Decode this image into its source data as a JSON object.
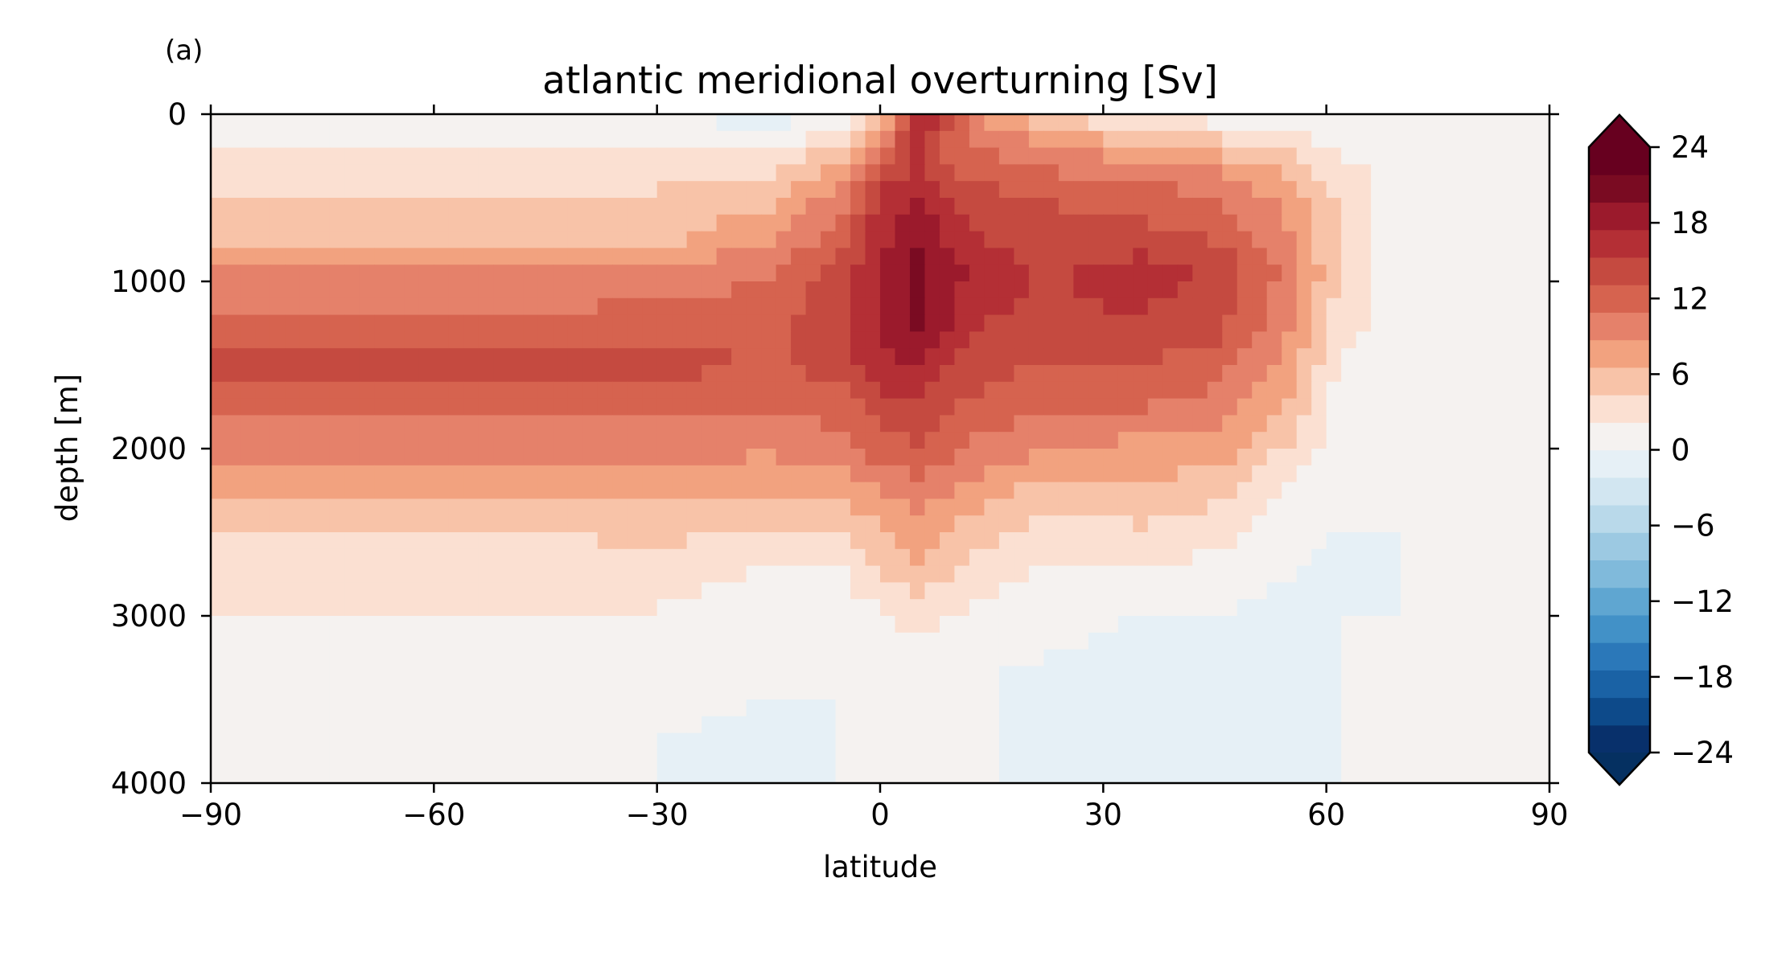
{
  "panel_label": "(a)",
  "chart_data": {
    "type": "heatmap",
    "title": "atlantic meridional overturning [Sv]",
    "xlabel": "latitude",
    "ylabel": "depth [m]",
    "xlim": [
      -90,
      90
    ],
    "ylim": [
      4000,
      0
    ],
    "y_inverted": true,
    "xticks": [
      -90,
      -60,
      -30,
      0,
      30,
      60,
      90
    ],
    "yticks": [
      0,
      1000,
      2000,
      3000,
      4000
    ],
    "colorbar": {
      "min": -24,
      "max": 24,
      "step": 3,
      "extend": "both",
      "ticks": [
        24,
        18,
        12,
        6,
        0,
        -6,
        -12,
        -18,
        -24
      ],
      "colormap": "RdBu_r",
      "colors": [
        "#08306b",
        "#0d4a8a",
        "#1a62a5",
        "#2b78b9",
        "#4291c7",
        "#5fa6d1",
        "#80badb",
        "#9cc9e2",
        "#b9d9ea",
        "#d2e6f1",
        "#e6f0f6",
        "#f5f2f0",
        "#fbe0d2",
        "#f8c3a8",
        "#f2a27f",
        "#e5816a",
        "#d6634f",
        "#c54a40",
        "#b42f35",
        "#9b1a2c",
        "#7a0b22",
        "#67001f"
      ],
      "under_color": "#053061",
      "over_color": "#67001f"
    },
    "depths": [
      0,
      100,
      200,
      350,
      500,
      750,
      900,
      1000,
      1250,
      1500,
      1750,
      2000,
      2250,
      2500,
      2750,
      3000,
      3250,
      3500,
      3750,
      4000
    ],
    "profiles": [
      {
        "lat": -90,
        "values": [
          1,
          1,
          2,
          3,
          5,
          6,
          9,
          9,
          11,
          14,
          11,
          10,
          7,
          4,
          3,
          2,
          1,
          1,
          0,
          0
        ]
      },
      {
        "lat": -60,
        "values": [
          1,
          1,
          2,
          3,
          5,
          6,
          9,
          9,
          11,
          14,
          11,
          10,
          7,
          4,
          3,
          2,
          1,
          1,
          0,
          0
        ]
      },
      {
        "lat": -30,
        "values": [
          0,
          1,
          2,
          3,
          5,
          6,
          9,
          10,
          12,
          14,
          11,
          10,
          7,
          5,
          3,
          2,
          1,
          1,
          0,
          0
        ]
      },
      {
        "lat": -15,
        "values": [
          -1,
          0,
          2,
          4,
          6,
          8,
          10,
          11,
          12,
          13,
          11,
          9,
          7,
          4,
          2,
          1,
          0,
          0,
          -1,
          -1
        ]
      },
      {
        "lat": -5,
        "values": [
          0,
          2,
          5,
          8,
          10,
          12,
          14,
          15,
          15,
          14,
          12,
          10,
          7,
          4,
          2,
          1,
          1,
          0,
          0,
          0
        ]
      },
      {
        "lat": 0,
        "values": [
          4,
          8,
          11,
          14,
          16,
          17,
          18,
          18,
          18,
          17,
          14,
          12,
          9,
          6,
          4,
          2,
          1,
          1,
          0,
          0
        ]
      },
      {
        "lat": 5,
        "values": [
          18,
          16,
          15,
          16,
          18,
          19,
          20,
          20,
          20,
          18,
          15,
          13,
          10,
          8,
          6,
          3,
          1,
          1,
          0,
          0
        ]
      },
      {
        "lat": 10,
        "values": [
          14,
          12,
          12,
          13,
          15,
          17,
          18,
          18,
          17,
          15,
          13,
          11,
          9,
          6,
          4,
          2,
          1,
          0,
          0,
          0
        ]
      },
      {
        "lat": 15,
        "values": [
          8,
          9,
          11,
          12,
          14,
          15,
          16,
          16,
          15,
          14,
          12,
          10,
          7,
          5,
          3,
          1,
          0,
          0,
          0,
          0
        ]
      },
      {
        "lat": 22,
        "values": [
          4,
          7,
          9,
          11,
          13,
          14,
          15,
          15,
          15,
          13,
          11,
          9,
          6,
          3,
          2,
          1,
          0,
          -1,
          -1,
          -1
        ]
      },
      {
        "lat": 35,
        "values": [
          2,
          4,
          7,
          10,
          12,
          14,
          16,
          16,
          15,
          13,
          11,
          8,
          6,
          4,
          2,
          0,
          -1,
          -1,
          -1,
          -1
        ]
      },
      {
        "lat": 45,
        "values": [
          1,
          3,
          6,
          9,
          11,
          13,
          15,
          15,
          14,
          12,
          10,
          8,
          5,
          3,
          1,
          0,
          -1,
          -2,
          -2,
          -1
        ]
      },
      {
        "lat": 55,
        "values": [
          1,
          2,
          4,
          6,
          8,
          9,
          10,
          10,
          9,
          8,
          6,
          4,
          2,
          1,
          0,
          -1,
          -1,
          -1,
          -1,
          0
        ]
      },
      {
        "lat": 62,
        "values": [
          0,
          1,
          2,
          3,
          4,
          4,
          4,
          4,
          3,
          2,
          1,
          1,
          0,
          0,
          -1,
          0,
          0,
          0,
          0,
          0
        ]
      },
      {
        "lat": 70,
        "values": [
          0,
          1,
          1,
          1,
          1,
          1,
          1,
          1,
          1,
          1,
          0,
          0,
          0,
          0,
          0,
          0,
          0,
          0,
          0,
          0
        ]
      },
      {
        "lat": 90,
        "values": [
          0,
          0,
          0,
          0,
          0,
          0,
          0,
          0,
          0,
          0,
          0,
          0,
          0,
          0,
          0,
          0,
          0,
          0,
          0,
          0
        ]
      }
    ]
  }
}
